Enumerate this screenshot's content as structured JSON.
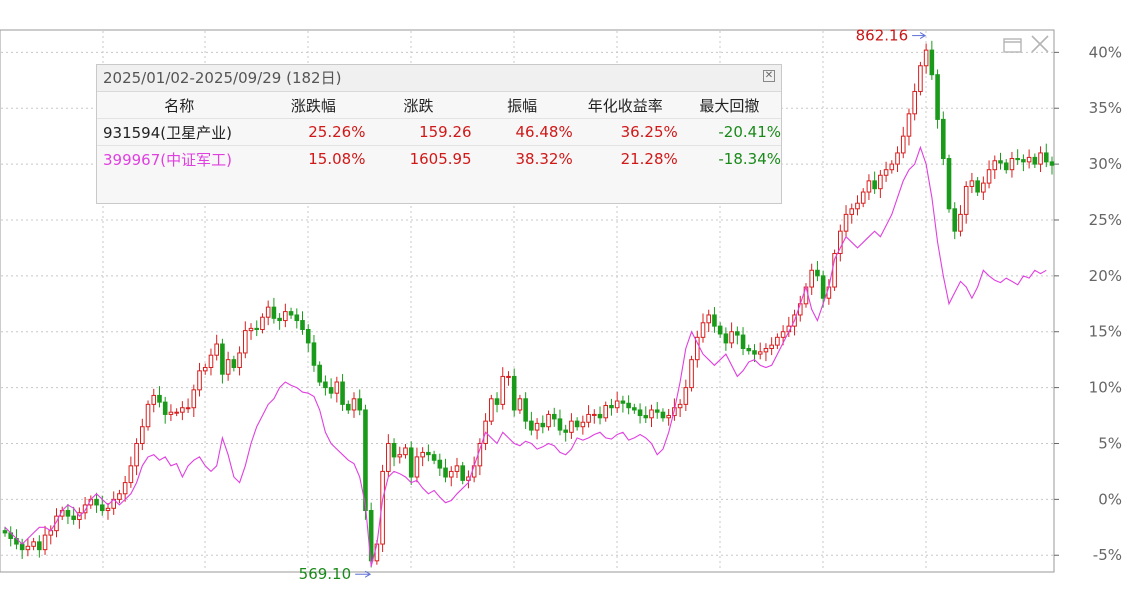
{
  "stats_panel": {
    "title": "2025/01/02-2025/09/29 (182日)",
    "headers": [
      "名称",
      "涨跌幅",
      "涨跌",
      "振幅",
      "年化收益率",
      "最大回撤"
    ],
    "rows": [
      {
        "name": "931594(卫星产业)",
        "pct": "25.26%",
        "change": "159.26",
        "amplitude": "46.48%",
        "annualized": "36.25%",
        "max_drawdown": "-20.41%",
        "name_color": "#222222"
      },
      {
        "name": "399967(中证军工)",
        "pct": "15.08%",
        "change": "1605.95",
        "amplitude": "38.32%",
        "annualized": "21.28%",
        "max_drawdown": "-18.34%",
        "name_color": "#e040e0"
      }
    ]
  },
  "chart_data": {
    "type": "line",
    "title": "",
    "xlabel": "",
    "ylabel": "",
    "y_unit": "%",
    "ylim": [
      -6.5,
      42
    ],
    "y_ticks": [
      -5,
      0,
      5,
      10,
      15,
      20,
      25,
      30,
      35,
      40
    ],
    "y_tick_labels": [
      "-5%",
      "0%",
      "5%",
      "10%",
      "15%",
      "20%",
      "25%",
      "30%",
      "35%",
      "40%"
    ],
    "grid": true,
    "colors": {
      "up": "#d81e1e",
      "down": "#1a9a1a",
      "benchmark": "#e040e0",
      "axis": "#666666",
      "grid": "#c8c8c8"
    },
    "high_label": "862.16",
    "low_label": "569.10",
    "series": [
      {
        "name": "931594(卫星产业)",
        "style": "candlestick",
        "values": [
          -3,
          -3.5,
          -4,
          -4.5,
          -4.2,
          -3.8,
          -4.5,
          -3.2,
          -2.8,
          -1.5,
          -1,
          -1.5,
          -1.8,
          -1.2,
          -0.5,
          0,
          -0.5,
          -1,
          -0.8,
          0,
          0.5,
          1.5,
          3,
          5,
          6.5,
          8.5,
          9.3,
          8.7,
          7.6,
          7.8,
          7.8,
          8.2,
          8.2,
          9.8,
          11.5,
          11.8,
          12.9,
          13.9,
          11.2,
          12.5,
          11.8,
          13.1,
          15.1,
          15.3,
          15.2,
          16.3,
          17.2,
          16.2,
          16,
          16.8,
          16.5,
          16,
          15.2,
          14,
          12,
          10.5,
          10,
          9.5,
          10.5,
          8.5,
          8,
          9,
          8,
          -1,
          -5.5,
          -4,
          2.5,
          5,
          3.8,
          4,
          4.6,
          2,
          3.8,
          4.2,
          4,
          3.5,
          2.8,
          2,
          2.5,
          3,
          1.7,
          2,
          3,
          5,
          7,
          9,
          8.5,
          11,
          11,
          8,
          9,
          7,
          6.2,
          6.8,
          6.5,
          7.6,
          7.2,
          6.2,
          6,
          7,
          6.5,
          6.9,
          7.6,
          7.6,
          7.3,
          8.4,
          8.2,
          8.8,
          8.6,
          8.2,
          8,
          7.5,
          7.3,
          8,
          7.8,
          7.3,
          7.5,
          8.2,
          8.5,
          10,
          12.5,
          14.5,
          15.8,
          16.5,
          15.5,
          14.8,
          14,
          15,
          14.7,
          13.5,
          13.3,
          13,
          13.2,
          13.5,
          13.8,
          14.5,
          15,
          15.5,
          16.5,
          17.5,
          19,
          20.5,
          20,
          18,
          19,
          22,
          24,
          25.5,
          26,
          26.5,
          27.5,
          28.5,
          27.8,
          29,
          29.5,
          30,
          31,
          32.5,
          34.5,
          36.5,
          38.8,
          40.2,
          38,
          34,
          30.5,
          26,
          24,
          25.5,
          28,
          28.5,
          27.5,
          28.3,
          29.5,
          30.3,
          30.1,
          29.5,
          30.5,
          30.4,
          30.2,
          30.6,
          30,
          31,
          30.2,
          29.9
        ]
      },
      {
        "name": "399967(中证军工)",
        "style": "line",
        "values": [
          -2.5,
          -3,
          -3.5,
          -4,
          -3.5,
          -3,
          -2.5,
          -2.5,
          -2.8,
          -2,
          -1,
          -0.5,
          -0.8,
          -1.5,
          -1,
          0,
          0.5,
          0,
          -0.5,
          0,
          -0.5,
          0,
          0.5,
          1.5,
          3,
          3.8,
          4,
          3.5,
          3.8,
          3,
          3.2,
          2,
          3,
          3.5,
          3.8,
          3,
          2.5,
          3,
          5.5,
          4,
          2,
          1.5,
          3,
          5,
          6.5,
          7.5,
          8.5,
          9,
          10,
          10.5,
          10.2,
          10,
          9.6,
          9.5,
          9.2,
          8,
          6,
          5,
          4.5,
          4,
          3.5,
          3.2,
          2,
          -0.5,
          -6,
          -4,
          0,
          2,
          2.5,
          2.3,
          2,
          1.5,
          1.7,
          1,
          0.5,
          0.8,
          0.2,
          -0.3,
          -0.1,
          0.5,
          1,
          1.5,
          3,
          4.5,
          6,
          5.5,
          5,
          6,
          5.5,
          5,
          4.8,
          5.2,
          5,
          4.5,
          4.7,
          5,
          4.8,
          4.2,
          4,
          4.5,
          5.5,
          5.3,
          5.5,
          5.8,
          6,
          5.5,
          5.4,
          5.8,
          6,
          5.3,
          5.5,
          5.8,
          5.5,
          5,
          4,
          4.5,
          6,
          8,
          10.5,
          13.5,
          15,
          14,
          13,
          12.5,
          12,
          12.5,
          13,
          12,
          11,
          11.5,
          12.3,
          12.5,
          12,
          11.8,
          12,
          13,
          14,
          15,
          16,
          17.5,
          19,
          17,
          16,
          17.5,
          19,
          21.5,
          22.5,
          23.5,
          23,
          22.5,
          23,
          23.5,
          24,
          23.5,
          24.5,
          25.5,
          27,
          28.5,
          29.5,
          30,
          31.5,
          30,
          27,
          23,
          20,
          17.5,
          18.5,
          19.5,
          19,
          18,
          19,
          20.5,
          20,
          19.6,
          19.4,
          19.8,
          19.5,
          19.2,
          20,
          19.8,
          20.5,
          20.2,
          20.5
        ]
      }
    ]
  }
}
